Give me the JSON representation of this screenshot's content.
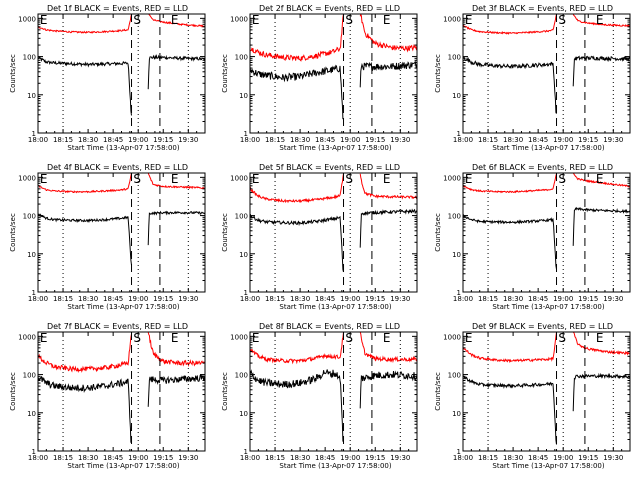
{
  "colors": {
    "background": "#ffffff",
    "events": "#000000",
    "lld": "#ff0000",
    "axes": "#000000"
  },
  "chart_data": {
    "type": "line",
    "layout": "3x3 grid of log-scale time series",
    "shared": {
      "xlabel": "Start Time (13-Apr-07 17:58:00)",
      "ylabel": "Counts/sec",
      "x_tick_labels": [
        "18:00",
        "18:15",
        "18:30",
        "18:45",
        "19:00",
        "19:15",
        "19:30"
      ],
      "x_tick_minutes": [
        0,
        15,
        30,
        45,
        60,
        75,
        90
      ],
      "xlim_minutes": [
        0,
        100
      ],
      "y_tick_labels": [
        "1",
        "10",
        "100",
        "1000"
      ],
      "ylim": [
        1,
        1300
      ],
      "yscale": "log",
      "dotted_lines_minutes": [
        15,
        60,
        90
      ],
      "dashed_lines_minutes": [
        56,
        73
      ],
      "markers": [
        {
          "label": "E",
          "minute": 0.5
        },
        {
          "label": "S",
          "minute": 56.5
        },
        {
          "label": "E",
          "minute": 79
        }
      ],
      "gap_minutes": [
        56,
        66
      ],
      "series_names": [
        "Events",
        "LLD"
      ]
    },
    "panels": [
      {
        "title": "Det 1f BLACK = Events, RED = LLD",
        "series": [
          {
            "name": "Events",
            "color": "#000000",
            "x": [
              0,
              5,
              10,
              20,
              30,
              40,
              50,
              54,
              55.8,
              66,
              66.6,
              67.5,
              75,
              85,
              95,
              100
            ],
            "y": [
              95,
              72,
              68,
              65,
              62,
              64,
              66,
              68,
              3,
              15,
              90,
              95,
              95,
              90,
              88,
              85
            ],
            "noise": 0.04
          },
          {
            "name": "LLD",
            "color": "#ff0000",
            "x": [
              0,
              5,
              10,
              20,
              30,
              40,
              50,
              54,
              56,
              66,
              67,
              69,
              75,
              85,
              95,
              100
            ],
            "y": [
              600,
              500,
              470,
              440,
              430,
              450,
              480,
              500,
              1300,
              1300,
              1200,
              900,
              800,
              700,
              650,
              620
            ],
            "noise": 0.02
          }
        ]
      },
      {
        "title": "Det 2f BLACK = Events, RED = LLD",
        "series": [
          {
            "name": "Events",
            "color": "#000000",
            "x": [
              0,
              5,
              10,
              20,
              30,
              40,
              50,
              54,
              55.8,
              66,
              66.6,
              67.5,
              75,
              85,
              95,
              100
            ],
            "y": [
              45,
              35,
              32,
              28,
              30,
              38,
              45,
              50,
              2,
              15,
              60,
              55,
              55,
              55,
              60,
              62
            ],
            "noise": 0.1
          },
          {
            "name": "LLD",
            "color": "#ff0000",
            "x": [
              0,
              5,
              10,
              20,
              30,
              40,
              50,
              54,
              56,
              66,
              67,
              69,
              75,
              85,
              95,
              100
            ],
            "y": [
              170,
              130,
              110,
              95,
              90,
              105,
              135,
              160,
              1300,
              1300,
              900,
              400,
              220,
              170,
              165,
              175
            ],
            "noise": 0.07
          }
        ]
      },
      {
        "title": "Det 3f BLACK = Events, RED = LLD",
        "series": [
          {
            "name": "Events",
            "color": "#000000",
            "x": [
              0,
              5,
              10,
              20,
              30,
              40,
              50,
              54,
              55.8,
              66,
              66.6,
              67.5,
              75,
              85,
              95,
              100
            ],
            "y": [
              95,
              72,
              62,
              57,
              55,
              58,
              62,
              65,
              3,
              15,
              85,
              90,
              92,
              90,
              88,
              86
            ],
            "noise": 0.05
          },
          {
            "name": "LLD",
            "color": "#ff0000",
            "x": [
              0,
              5,
              10,
              20,
              30,
              40,
              50,
              54,
              56,
              66,
              67,
              69,
              75,
              85,
              95,
              100
            ],
            "y": [
              650,
              500,
              450,
              420,
              410,
              430,
              460,
              490,
              1300,
              1300,
              1100,
              850,
              750,
              680,
              650,
              640
            ],
            "noise": 0.02
          }
        ]
      },
      {
        "title": "Det 4f BLACK = Events, RED = LLD",
        "series": [
          {
            "name": "Events",
            "color": "#000000",
            "x": [
              0,
              5,
              10,
              20,
              30,
              40,
              50,
              54,
              55.8,
              66,
              66.6,
              67.5,
              75,
              85,
              95,
              100
            ],
            "y": [
              110,
              85,
              78,
              75,
              74,
              78,
              85,
              90,
              5,
              18,
              110,
              115,
              118,
              120,
              118,
              116
            ],
            "noise": 0.03
          },
          {
            "name": "LLD",
            "color": "#ff0000",
            "x": [
              0,
              5,
              10,
              20,
              30,
              40,
              50,
              54,
              56,
              66,
              67,
              69,
              75,
              85,
              95,
              100
            ],
            "y": [
              600,
              470,
              440,
              420,
              420,
              440,
              470,
              500,
              1300,
              1300,
              1000,
              650,
              580,
              560,
              540,
              520
            ],
            "noise": 0.02
          }
        ]
      },
      {
        "title": "Det 5f BLACK = Events, RED = LLD",
        "series": [
          {
            "name": "Events",
            "color": "#000000",
            "x": [
              0,
              5,
              10,
              20,
              30,
              40,
              50,
              54,
              55.8,
              66,
              66.6,
              67.5,
              75,
              85,
              95,
              100
            ],
            "y": [
              100,
              75,
              68,
              65,
              64,
              70,
              82,
              88,
              3,
              15,
              110,
              115,
              120,
              125,
              128,
              130
            ],
            "noise": 0.04
          },
          {
            "name": "LLD",
            "color": "#ff0000",
            "x": [
              0,
              5,
              10,
              20,
              30,
              40,
              50,
              54,
              56,
              66,
              67,
              69,
              75,
              85,
              95,
              100
            ],
            "y": [
              500,
              320,
              270,
              240,
              240,
              260,
              300,
              330,
              1300,
              1300,
              700,
              380,
              320,
              310,
              305,
              300
            ],
            "noise": 0.03
          }
        ]
      },
      {
        "title": "Det 6f BLACK = Events, RED = LLD",
        "series": [
          {
            "name": "Events",
            "color": "#000000",
            "x": [
              0,
              5,
              10,
              20,
              30,
              40,
              50,
              54,
              55.8,
              66,
              66.6,
              67.5,
              75,
              85,
              95,
              100
            ],
            "y": [
              100,
              78,
              70,
              68,
              67,
              70,
              75,
              78,
              4,
              15,
              130,
              150,
              140,
              135,
              130,
              128
            ],
            "noise": 0.03
          },
          {
            "name": "LLD",
            "color": "#ff0000",
            "x": [
              0,
              5,
              10,
              20,
              30,
              40,
              50,
              54,
              56,
              66,
              67,
              69,
              75,
              85,
              95,
              100
            ],
            "y": [
              600,
              480,
              440,
              420,
              420,
              440,
              470,
              500,
              1300,
              1300,
              1100,
              900,
              800,
              700,
              620,
              580
            ],
            "noise": 0.02
          }
        ]
      },
      {
        "title": "Det 7f BLACK = Events, RED = LLD",
        "series": [
          {
            "name": "Events",
            "color": "#000000",
            "x": [
              0,
              5,
              10,
              20,
              30,
              40,
              50,
              54,
              55.8,
              66,
              66.6,
              67.5,
              75,
              85,
              95,
              100
            ],
            "y": [
              85,
              60,
              50,
              45,
              45,
              50,
              60,
              65,
              1.5,
              12,
              80,
              75,
              70,
              75,
              80,
              82
            ],
            "noise": 0.09
          },
          {
            "name": "LLD",
            "color": "#ff0000",
            "x": [
              0,
              5,
              10,
              20,
              30,
              40,
              50,
              54,
              56,
              66,
              67,
              69,
              75,
              85,
              95,
              100
            ],
            "y": [
              300,
              200,
              160,
              140,
              140,
              150,
              180,
              200,
              1300,
              1300,
              800,
              350,
              220,
              200,
              200,
              200
            ],
            "noise": 0.06
          }
        ]
      },
      {
        "title": "Det 8f BLACK = Events, RED = LLD",
        "series": [
          {
            "name": "Events",
            "color": "#000000",
            "x": [
              0,
              5,
              10,
              20,
              30,
              40,
              45,
              48,
              50,
              54,
              55.8,
              66,
              66.6,
              67.5,
              75,
              85,
              95,
              100
            ],
            "y": [
              110,
              70,
              60,
              55,
              60,
              80,
              120,
              100,
              110,
              85,
              1.5,
              12,
              90,
              80,
              95,
              100,
              95,
              90
            ],
            "noise": 0.1
          },
          {
            "name": "LLD",
            "color": "#ff0000",
            "x": [
              0,
              5,
              10,
              20,
              30,
              40,
              45,
              48,
              50,
              54,
              56,
              66,
              67,
              69,
              75,
              85,
              95,
              100
            ],
            "y": [
              450,
              300,
              250,
              230,
              230,
              270,
              320,
              290,
              300,
              280,
              1300,
              1300,
              700,
              350,
              260,
              250,
              250,
              250
            ],
            "noise": 0.05
          }
        ]
      },
      {
        "title": "Det 9f BLACK = Events, RED = LLD",
        "series": [
          {
            "name": "Events",
            "color": "#000000",
            "x": [
              0,
              5,
              10,
              20,
              30,
              40,
              50,
              54,
              55.8,
              66,
              66.6,
              67.5,
              75,
              85,
              95,
              100
            ],
            "y": [
              90,
              65,
              55,
              52,
              51,
              53,
              56,
              58,
              1.5,
              12,
              80,
              90,
              92,
              92,
              90,
              88
            ],
            "noise": 0.04
          },
          {
            "name": "LLD",
            "color": "#ff0000",
            "x": [
              0,
              5,
              10,
              20,
              30,
              40,
              50,
              54,
              56,
              66,
              67,
              69,
              75,
              85,
              95,
              100
            ],
            "y": [
              500,
              330,
              270,
              240,
              230,
              240,
              250,
              260,
              1300,
              1300,
              1000,
              600,
              470,
              400,
              370,
              360
            ],
            "noise": 0.03
          }
        ]
      }
    ]
  }
}
